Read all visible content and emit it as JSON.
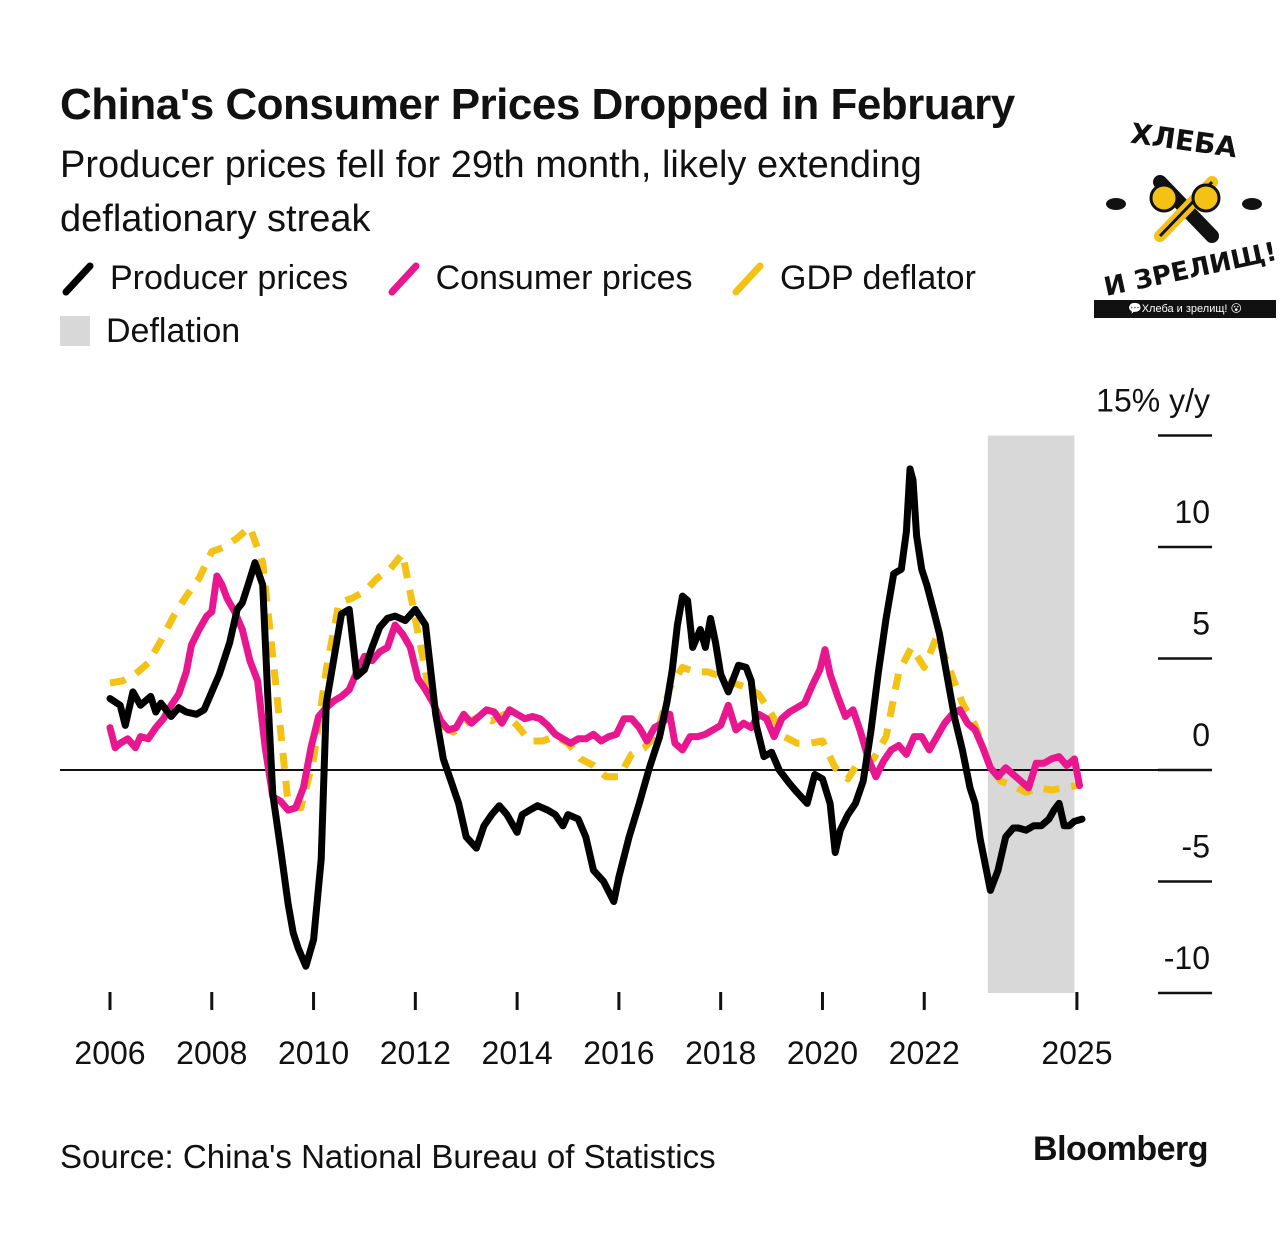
{
  "title": "China's Consumer Prices Dropped in February",
  "subtitle": "Producer prices fell for 29th month, likely extending deflationary streak",
  "legend": {
    "producer": "Producer prices",
    "consumer": "Consumer prices",
    "gdp": "GDP deflator",
    "deflation": "Deflation"
  },
  "colors": {
    "producer": "#000000",
    "consumer": "#e8168f",
    "gdp": "#f3c215",
    "deflation": "#d8d8d8"
  },
  "source": "Source: China's National Bureau of Statistics",
  "brand": "Bloomberg",
  "watermark": {
    "caption": "💬Хлеба и зрелищ! 😮",
    "logo_text": "ХЛЕБА И ЗРЕЛИЩ!"
  },
  "chart_data": {
    "type": "line",
    "ylabel": "15% y/y",
    "ylim": [
      -10,
      15
    ],
    "xlim": [
      2006,
      2025.1
    ],
    "yticks": [
      {
        "value": 15,
        "label": "15% y/y"
      },
      {
        "value": 10,
        "label": "10"
      },
      {
        "value": 5,
        "label": "5"
      },
      {
        "value": 0,
        "label": "0"
      },
      {
        "value": -5,
        "label": "-5"
      },
      {
        "value": -10,
        "label": "-10"
      }
    ],
    "xticks": [
      {
        "value": 2006,
        "label": "2006"
      },
      {
        "value": 2008,
        "label": "2008"
      },
      {
        "value": 2010,
        "label": "2010"
      },
      {
        "value": 2012,
        "label": "2012"
      },
      {
        "value": 2014,
        "label": "2014"
      },
      {
        "value": 2016,
        "label": "2016"
      },
      {
        "value": 2018,
        "label": "2018"
      },
      {
        "value": 2020,
        "label": "2020"
      },
      {
        "value": 2022,
        "label": "2022"
      },
      {
        "value": 2025,
        "label": "2025"
      }
    ],
    "deflation_period": [
      2023.25,
      2024.95
    ],
    "series": [
      {
        "name": "Producer prices",
        "style": "solid",
        "x": [
          2006.0,
          2006.2,
          2006.3,
          2006.45,
          2006.6,
          2006.8,
          2006.9,
          2007.0,
          2007.2,
          2007.35,
          2007.5,
          2007.7,
          2007.85,
          2008.0,
          2008.15,
          2008.35,
          2008.5,
          2008.6,
          2008.7,
          2008.85,
          2009.0,
          2009.1,
          2009.2,
          2009.35,
          2009.5,
          2009.6,
          2009.7,
          2009.85,
          2010.0,
          2010.15,
          2010.25,
          2010.4,
          2010.55,
          2010.7,
          2010.85,
          2011.0,
          2011.15,
          2011.3,
          2011.45,
          2011.6,
          2011.8,
          2012.0,
          2012.2,
          2012.4,
          2012.55,
          2012.7,
          2012.85,
          2013.0,
          2013.2,
          2013.35,
          2013.5,
          2013.65,
          2013.8,
          2014.0,
          2014.1,
          2014.25,
          2014.4,
          2014.6,
          2014.75,
          2014.9,
          2015.0,
          2015.2,
          2015.35,
          2015.5,
          2015.7,
          2015.9,
          2016.0,
          2016.2,
          2016.4,
          2016.6,
          2016.8,
          2016.95,
          2017.05,
          2017.15,
          2017.25,
          2017.35,
          2017.45,
          2017.6,
          2017.7,
          2017.8,
          2017.9,
          2018.0,
          2018.15,
          2018.35,
          2018.5,
          2018.6,
          2018.7,
          2018.85,
          2019.0,
          2019.15,
          2019.35,
          2019.5,
          2019.7,
          2019.85,
          2020.0,
          2020.15,
          2020.25,
          2020.35,
          2020.5,
          2020.65,
          2020.8,
          2020.95,
          2021.1,
          2021.25,
          2021.4,
          2021.55,
          2021.65,
          2021.72,
          2021.78,
          2021.85,
          2021.95,
          2022.05,
          2022.2,
          2022.3,
          2022.45,
          2022.6,
          2022.75,
          2022.9,
          2023.0,
          2023.1,
          2023.3,
          2023.45,
          2023.6,
          2023.75,
          2023.85,
          2024.0,
          2024.15,
          2024.3,
          2024.45,
          2024.55,
          2024.65,
          2024.75,
          2024.85,
          2024.95,
          2025.1
        ],
        "values": [
          3.2,
          2.9,
          2.0,
          3.5,
          2.9,
          3.3,
          2.6,
          3.0,
          2.4,
          2.8,
          2.6,
          2.5,
          2.7,
          3.5,
          4.3,
          5.7,
          7.2,
          7.5,
          8.2,
          9.3,
          8.3,
          3.3,
          -1.1,
          -3.5,
          -6.0,
          -7.3,
          -8.0,
          -8.8,
          -7.6,
          -4.0,
          3.0,
          5.0,
          7.0,
          7.2,
          4.2,
          4.5,
          5.5,
          6.4,
          6.8,
          6.9,
          6.7,
          7.2,
          6.5,
          2.5,
          0.5,
          -0.5,
          -1.5,
          -3.0,
          -3.5,
          -2.5,
          -2.0,
          -1.6,
          -2.0,
          -2.8,
          -2.0,
          -1.8,
          -1.6,
          -1.8,
          -2.0,
          -2.5,
          -2.0,
          -2.2,
          -3.0,
          -4.5,
          -5.0,
          -5.9,
          -4.8,
          -3.0,
          -1.5,
          0.1,
          1.5,
          3.1,
          4.5,
          6.5,
          7.8,
          7.6,
          5.5,
          6.3,
          5.5,
          6.8,
          5.7,
          4.3,
          3.5,
          4.7,
          4.6,
          4.0,
          2.0,
          0.6,
          0.8,
          0.0,
          -0.6,
          -1.0,
          -1.5,
          -0.2,
          -0.4,
          -1.5,
          -3.7,
          -2.7,
          -2.0,
          -1.5,
          -0.5,
          1.7,
          4.4,
          6.8,
          8.8,
          9.0,
          10.7,
          13.5,
          13.0,
          10.5,
          9.0,
          8.3,
          7.0,
          6.1,
          4.2,
          2.3,
          0.9,
          -0.8,
          -1.5,
          -3.1,
          -5.4,
          -4.5,
          -3.0,
          -2.6,
          -2.6,
          -2.7,
          -2.5,
          -2.5,
          -2.2,
          -1.8,
          -1.5,
          -2.5,
          -2.5,
          -2.3,
          -2.2
        ]
      },
      {
        "name": "Consumer prices",
        "style": "solid",
        "x": [
          2006.0,
          2006.1,
          2006.2,
          2006.35,
          2006.5,
          2006.6,
          2006.75,
          2006.9,
          2007.05,
          2007.2,
          2007.35,
          2007.5,
          2007.6,
          2007.75,
          2007.9,
          2008.0,
          2008.1,
          2008.2,
          2008.3,
          2008.45,
          2008.6,
          2008.75,
          2008.9,
          2009.05,
          2009.2,
          2009.35,
          2009.5,
          2009.65,
          2009.8,
          2009.95,
          2010.1,
          2010.25,
          2010.4,
          2010.55,
          2010.7,
          2010.85,
          2011.0,
          2011.15,
          2011.3,
          2011.45,
          2011.6,
          2011.75,
          2011.9,
          2012.05,
          2012.2,
          2012.35,
          2012.5,
          2012.65,
          2012.8,
          2012.95,
          2013.1,
          2013.25,
          2013.4,
          2013.55,
          2013.7,
          2013.85,
          2014.0,
          2014.15,
          2014.3,
          2014.45,
          2014.6,
          2014.75,
          2014.9,
          2015.05,
          2015.2,
          2015.35,
          2015.5,
          2015.65,
          2015.8,
          2015.95,
          2016.1,
          2016.25,
          2016.4,
          2016.55,
          2016.7,
          2016.85,
          2017.0,
          2017.1,
          2017.25,
          2017.4,
          2017.55,
          2017.7,
          2017.85,
          2018.0,
          2018.15,
          2018.3,
          2018.45,
          2018.6,
          2018.75,
          2018.9,
          2019.05,
          2019.2,
          2019.35,
          2019.5,
          2019.65,
          2019.8,
          2019.95,
          2020.05,
          2020.15,
          2020.3,
          2020.45,
          2020.6,
          2020.75,
          2020.9,
          2021.05,
          2021.2,
          2021.35,
          2021.5,
          2021.65,
          2021.8,
          2021.95,
          2022.1,
          2022.25,
          2022.4,
          2022.55,
          2022.7,
          2022.85,
          2023.0,
          2023.15,
          2023.3,
          2023.45,
          2023.6,
          2023.75,
          2023.9,
          2024.05,
          2024.2,
          2024.35,
          2024.5,
          2024.65,
          2024.8,
          2024.95,
          2025.05
        ],
        "values": [
          1.9,
          1.0,
          1.2,
          1.4,
          1.0,
          1.5,
          1.4,
          1.9,
          2.3,
          2.9,
          3.4,
          4.4,
          5.6,
          6.3,
          6.9,
          7.1,
          8.7,
          8.3,
          7.7,
          7.1,
          6.3,
          4.9,
          4.0,
          1.0,
          -1.2,
          -1.4,
          -1.8,
          -1.7,
          -0.8,
          1.0,
          2.4,
          2.8,
          3.1,
          3.3,
          3.6,
          4.4,
          5.1,
          4.9,
          5.3,
          5.5,
          6.5,
          6.1,
          5.5,
          4.1,
          3.6,
          3.0,
          2.2,
          1.8,
          1.9,
          2.5,
          2.1,
          2.4,
          2.7,
          2.6,
          2.1,
          2.7,
          2.5,
          2.3,
          2.4,
          2.3,
          2.0,
          1.6,
          1.4,
          1.2,
          1.4,
          1.4,
          1.6,
          1.3,
          1.5,
          1.6,
          2.3,
          2.3,
          1.9,
          1.3,
          1.9,
          2.1,
          2.5,
          1.2,
          0.9,
          1.5,
          1.5,
          1.6,
          1.8,
          2.0,
          2.9,
          1.8,
          2.1,
          1.9,
          2.5,
          2.3,
          1.5,
          2.3,
          2.6,
          2.8,
          3.0,
          3.8,
          4.5,
          5.4,
          4.3,
          3.3,
          2.4,
          2.7,
          1.7,
          0.5,
          -0.3,
          0.4,
          0.9,
          1.1,
          0.7,
          1.5,
          1.5,
          0.9,
          1.5,
          2.1,
          2.5,
          2.7,
          2.1,
          1.8,
          1.0,
          0.1,
          -0.3,
          0.1,
          -0.2,
          -0.5,
          -0.8,
          0.3,
          0.3,
          0.5,
          0.6,
          0.2,
          0.5,
          -0.7
        ]
      },
      {
        "name": "GDP deflator",
        "style": "dashed",
        "x": [
          2006.0,
          2006.25,
          2006.5,
          2006.75,
          2007.0,
          2007.25,
          2007.5,
          2007.75,
          2008.0,
          2008.25,
          2008.5,
          2008.75,
          2009.0,
          2009.25,
          2009.5,
          2009.75,
          2010.0,
          2010.25,
          2010.5,
          2010.75,
          2011.0,
          2011.25,
          2011.5,
          2011.75,
          2012.0,
          2012.25,
          2012.5,
          2012.75,
          2013.0,
          2013.25,
          2013.5,
          2013.75,
          2014.0,
          2014.25,
          2014.5,
          2014.75,
          2015.0,
          2015.25,
          2015.5,
          2015.75,
          2016.0,
          2016.25,
          2016.5,
          2016.75,
          2017.0,
          2017.25,
          2017.5,
          2017.75,
          2018.0,
          2018.25,
          2018.5,
          2018.75,
          2019.0,
          2019.25,
          2019.5,
          2019.75,
          2020.0,
          2020.25,
          2020.5,
          2020.75,
          2021.0,
          2021.25,
          2021.5,
          2021.75,
          2022.0,
          2022.25,
          2022.5,
          2022.75,
          2023.0,
          2023.25,
          2023.5,
          2023.75,
          2024.0,
          2024.25,
          2024.5,
          2024.75,
          2025.0
        ],
        "values": [
          3.9,
          4.0,
          4.3,
          4.8,
          5.8,
          6.9,
          7.8,
          8.6,
          9.8,
          10.0,
          10.4,
          10.9,
          9.3,
          4.0,
          -1.5,
          -1.7,
          0.5,
          4.5,
          7.5,
          7.7,
          8.0,
          8.6,
          9.0,
          9.7,
          6.8,
          3.8,
          2.0,
          1.7,
          2.1,
          2.4,
          2.2,
          2.5,
          2.0,
          1.3,
          1.3,
          1.5,
          1.2,
          0.5,
          0.2,
          -0.3,
          -0.3,
          0.7,
          1.0,
          1.6,
          3.7,
          4.6,
          4.4,
          4.4,
          4.2,
          3.9,
          3.7,
          3.4,
          2.5,
          1.5,
          1.2,
          1.2,
          1.3,
          0.1,
          -0.4,
          0.5,
          0.5,
          1.5,
          4.4,
          5.5,
          4.6,
          6.0,
          4.5,
          3.0,
          2.0,
          0.4,
          -0.5,
          -0.7,
          -1.0,
          -0.8,
          -0.9,
          -0.8,
          -0.7
        ]
      }
    ]
  }
}
